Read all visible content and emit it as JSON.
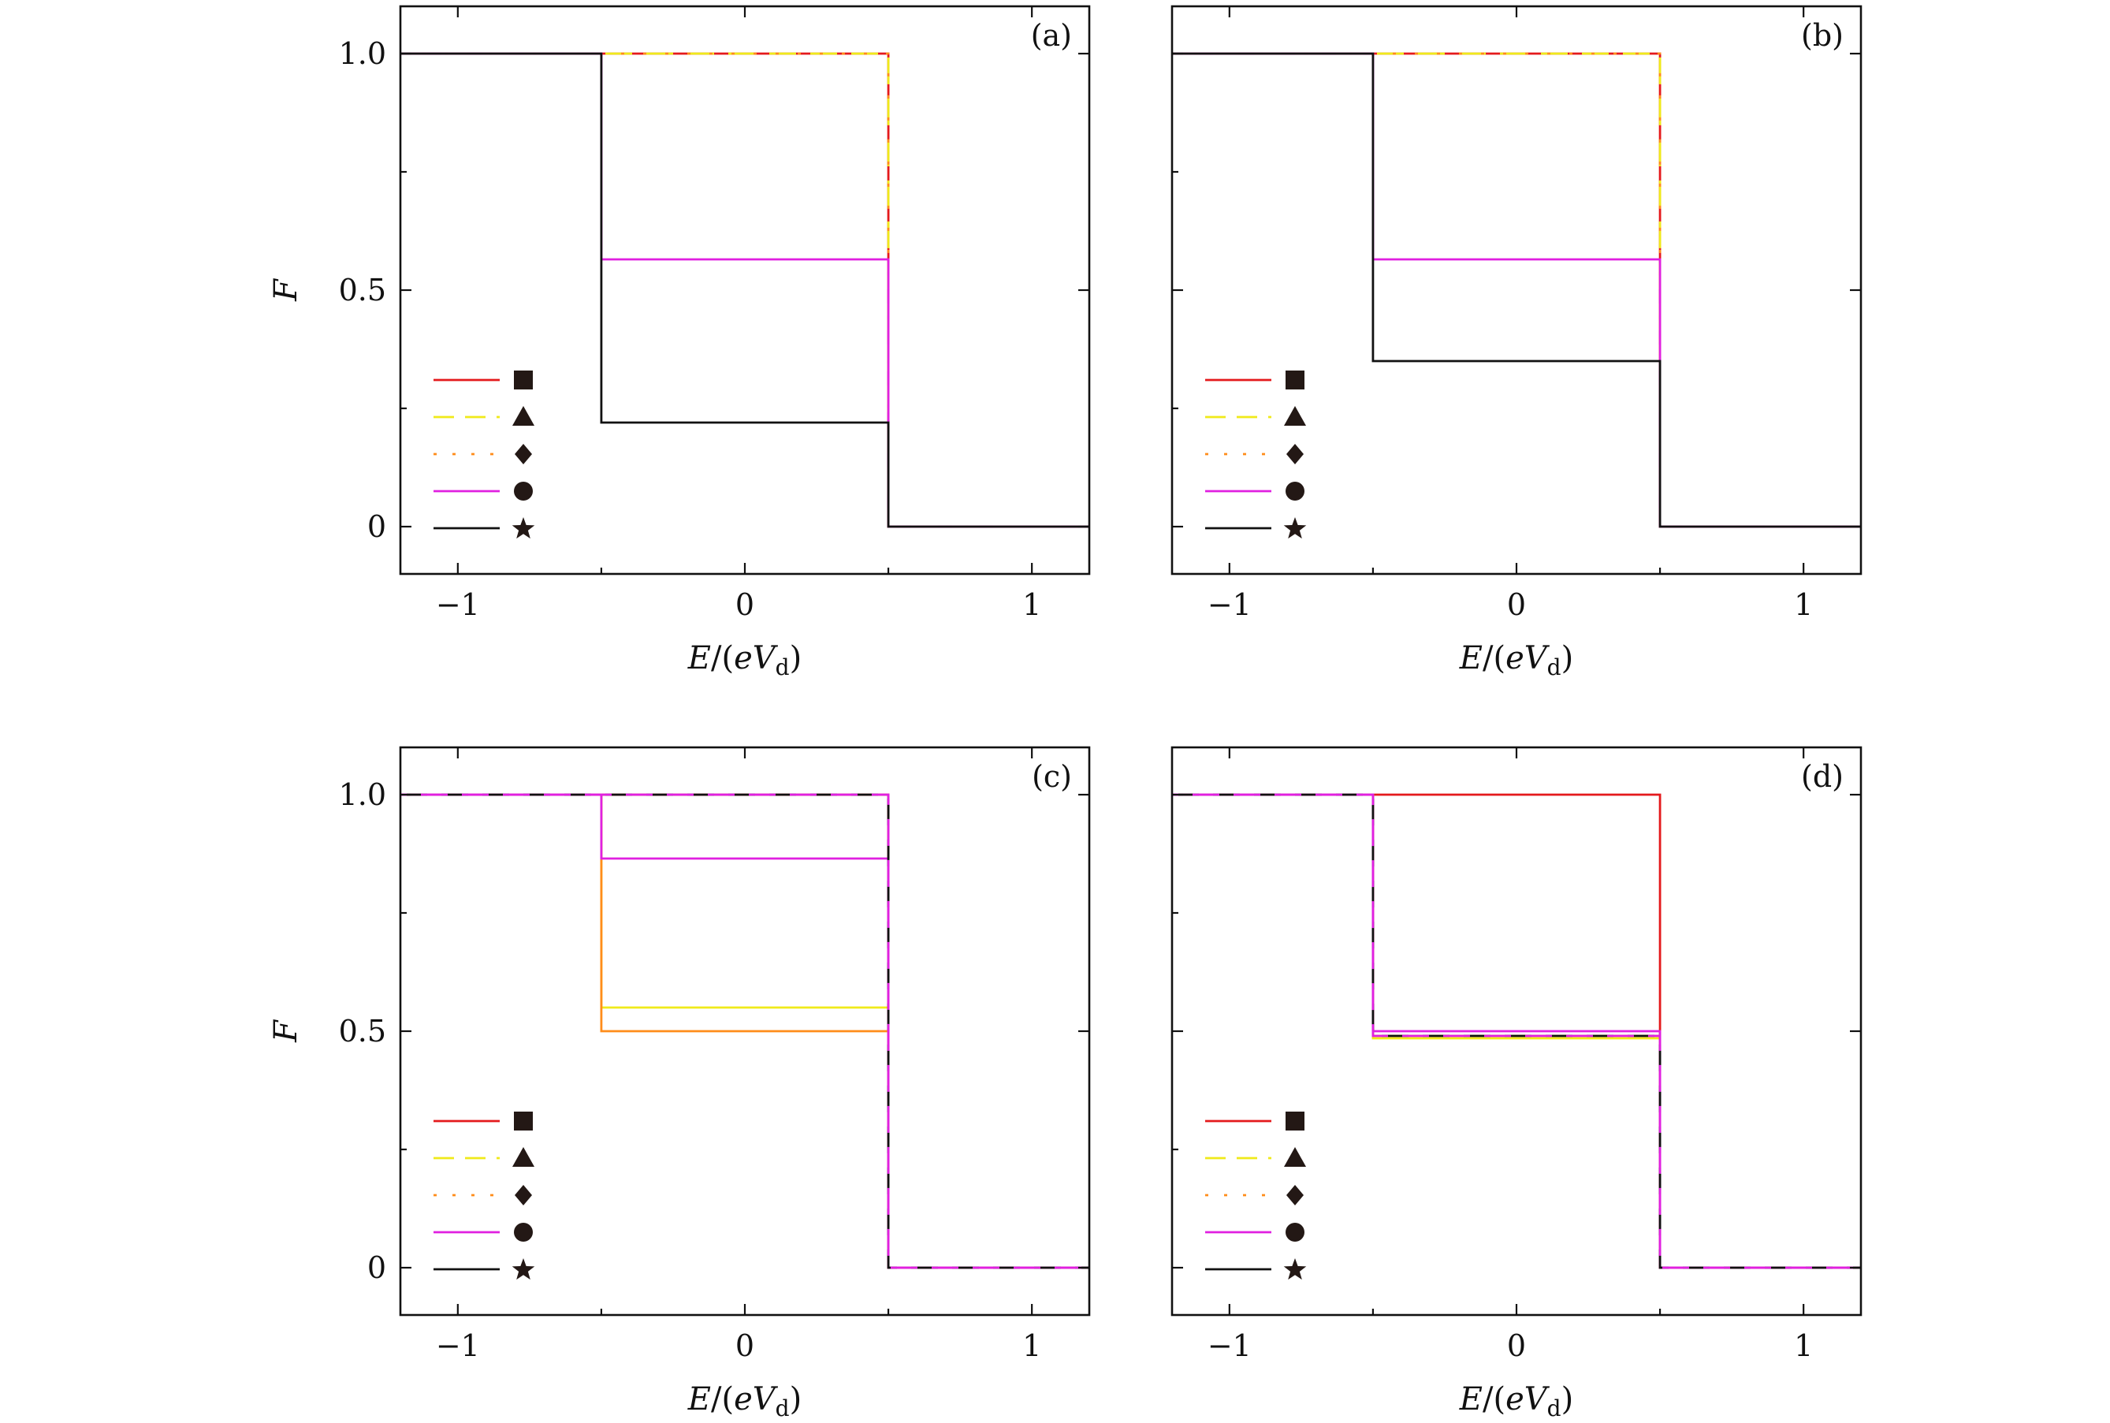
{
  "figure": {
    "panel_labels": [
      "(a)",
      "(b)",
      "(c)",
      "(d)"
    ]
  },
  "legend": {
    "entries": [
      {
        "marker": "square-icon",
        "color": "#e41a1c",
        "dash": "solid"
      },
      {
        "marker": "triangle-icon",
        "color": "#f0ea1a",
        "dash": "dashed"
      },
      {
        "marker": "diamond-icon",
        "color": "#ff8c1a",
        "dash": "dotted"
      },
      {
        "marker": "circle-icon",
        "color": "#e020e0",
        "dash": "solid"
      },
      {
        "marker": "star-icon",
        "color": "#111111",
        "dash": "solid"
      }
    ]
  },
  "chart_data": [
    {
      "type": "line",
      "panel": "(a)",
      "xlabel": "E/(eV_d)",
      "ylabel": "F",
      "xlim": [
        -1.2,
        1.2
      ],
      "ylim": [
        -0.1,
        1.1
      ],
      "xticks": [
        -1,
        0,
        1
      ],
      "xtick_labels": [
        "−1",
        "0",
        "1"
      ],
      "yticks": [
        0,
        0.5,
        1.0
      ],
      "ytick_labels": [
        "0",
        "0.5",
        "1.0"
      ],
      "legend_position": "bottom-left",
      "series": [
        {
          "color": "#e41a1c",
          "dash": "solid",
          "x": [
            -1.2,
            -0.5,
            -0.5,
            0.5,
            0.5,
            1.2
          ],
          "y": [
            1,
            1,
            1,
            1,
            0,
            0
          ]
        },
        {
          "color": "#f0ea1a",
          "dash": "dashed",
          "x": [
            -1.2,
            -0.5,
            -0.5,
            0.5,
            0.5,
            1.2
          ],
          "y": [
            1,
            1,
            1,
            1,
            0,
            0
          ]
        },
        {
          "color": "#ff8c1a",
          "dash": "dotted",
          "x": [
            -1.2,
            -0.5,
            -0.5,
            0.5,
            0.5,
            1.2
          ],
          "y": [
            1,
            1,
            1,
            1,
            0,
            0
          ]
        },
        {
          "color": "#e020e0",
          "dash": "solid",
          "x": [
            -1.2,
            -0.5,
            -0.5,
            0.5,
            0.5,
            1.2
          ],
          "y": [
            1,
            1,
            0.565,
            0.565,
            0,
            0
          ]
        },
        {
          "color": "#111111",
          "dash": "solid",
          "x": [
            -1.2,
            -0.5,
            -0.5,
            0.5,
            0.5,
            1.2
          ],
          "y": [
            1,
            1,
            0.22,
            0.22,
            0,
            0
          ]
        }
      ]
    },
    {
      "type": "line",
      "panel": "(b)",
      "xlabel": "E/(eV_d)",
      "ylabel": "",
      "xlim": [
        -1.2,
        1.2
      ],
      "ylim": [
        -0.1,
        1.1
      ],
      "xticks": [
        -1,
        0,
        1
      ],
      "xtick_labels": [
        "−1",
        "0",
        "1"
      ],
      "yticks": [
        0,
        0.5,
        1.0
      ],
      "ytick_labels": [],
      "legend_position": "bottom-left",
      "series": [
        {
          "color": "#e41a1c",
          "dash": "solid",
          "x": [
            -1.2,
            -0.5,
            -0.5,
            0.5,
            0.5,
            1.2
          ],
          "y": [
            1,
            1,
            1,
            1,
            0,
            0
          ]
        },
        {
          "color": "#f0ea1a",
          "dash": "dashed",
          "x": [
            -1.2,
            -0.5,
            -0.5,
            0.5,
            0.5,
            1.2
          ],
          "y": [
            1,
            1,
            1,
            1,
            0,
            0
          ]
        },
        {
          "color": "#ff8c1a",
          "dash": "dotted",
          "x": [
            -1.2,
            -0.5,
            -0.5,
            0.5,
            0.5,
            1.2
          ],
          "y": [
            1,
            1,
            1,
            1,
            0,
            0
          ]
        },
        {
          "color": "#e020e0",
          "dash": "solid",
          "x": [
            -1.2,
            -0.5,
            -0.5,
            0.5,
            0.5,
            1.2
          ],
          "y": [
            1,
            1,
            0.565,
            0.565,
            0,
            0
          ]
        },
        {
          "color": "#111111",
          "dash": "solid",
          "x": [
            -1.2,
            -0.5,
            -0.5,
            0.5,
            0.5,
            1.2
          ],
          "y": [
            1,
            1,
            0.35,
            0.35,
            0,
            0
          ]
        }
      ]
    },
    {
      "type": "line",
      "panel": "(c)",
      "xlabel": "E/(eV_d)",
      "ylabel": "F",
      "xlim": [
        -1.2,
        1.2
      ],
      "ylim": [
        -0.1,
        1.1
      ],
      "xticks": [
        -1,
        0,
        1
      ],
      "xtick_labels": [
        "−1",
        "0",
        "1"
      ],
      "yticks": [
        0,
        0.5,
        1.0
      ],
      "ytick_labels": [
        "0",
        "0.5",
        "1.0"
      ],
      "legend_position": "bottom-left",
      "series": [
        {
          "color": "#e41a1c",
          "dash": "solid",
          "x": [
            -1.2,
            -0.5,
            -0.5,
            0.5,
            0.5,
            1.2
          ],
          "y": [
            1,
            1,
            1,
            1,
            0,
            0
          ]
        },
        {
          "color": "#f0ea1a",
          "dash": "solid",
          "x": [
            -1.2,
            -0.5,
            -0.5,
            0.5,
            0.5,
            1.2
          ],
          "y": [
            1,
            1,
            0.55,
            0.55,
            0,
            0
          ]
        },
        {
          "color": "#ff8c1a",
          "dash": "solid",
          "x": [
            -1.2,
            -0.5,
            -0.5,
            0.5,
            0.5,
            1.2
          ],
          "y": [
            1,
            1,
            0.5,
            0.5,
            0,
            0
          ]
        },
        {
          "color": "#e020e0",
          "dash": "solid",
          "x": [
            -1.2,
            -0.5,
            -0.5,
            0.5,
            0.5,
            1.2
          ],
          "y": [
            1,
            1,
            0.865,
            0.865,
            0,
            0
          ]
        },
        {
          "color": "#111111",
          "dash": "dashed",
          "x": [
            -1.2,
            -0.5,
            -0.5,
            0.5,
            0.5,
            1.2
          ],
          "y": [
            1,
            1,
            1,
            1,
            0,
            0
          ]
        },
        {
          "color": "#e020e0",
          "dash": "dashed-offset",
          "x": [
            -1.2,
            -0.5,
            -0.5,
            0.5,
            0.5,
            1.2
          ],
          "y": [
            1,
            1,
            1,
            1,
            0,
            0
          ]
        }
      ]
    },
    {
      "type": "line",
      "panel": "(d)",
      "xlabel": "E/(eV_d)",
      "ylabel": "",
      "xlim": [
        -1.2,
        1.2
      ],
      "ylim": [
        -0.1,
        1.1
      ],
      "xticks": [
        -1,
        0,
        1
      ],
      "xtick_labels": [
        "−1",
        "0",
        "1"
      ],
      "yticks": [
        0,
        0.5,
        1.0
      ],
      "ytick_labels": [],
      "legend_position": "bottom-left",
      "series": [
        {
          "color": "#e41a1c",
          "dash": "solid",
          "x": [
            -1.2,
            -0.5,
            -0.5,
            0.5,
            0.5,
            1.2
          ],
          "y": [
            1,
            1,
            1,
            1,
            0,
            0
          ]
        },
        {
          "color": "#f0ea1a",
          "dash": "solid",
          "x": [
            -1.2,
            -0.5,
            -0.5,
            0.5,
            0.5,
            1.2
          ],
          "y": [
            1,
            1,
            0.485,
            0.485,
            0,
            0
          ]
        },
        {
          "color": "#ff8c1a",
          "dash": "solid",
          "x": [
            -1.2,
            -0.5,
            -0.5,
            0.5,
            0.5,
            1.2
          ],
          "y": [
            1,
            1,
            0.49,
            0.49,
            0,
            0
          ]
        },
        {
          "color": "#e020e0",
          "dash": "solid",
          "x": [
            -1.2,
            -0.5,
            -0.5,
            0.5,
            0.5,
            1.2
          ],
          "y": [
            1,
            1,
            0.5,
            0.5,
            0,
            0
          ]
        },
        {
          "color": "#111111",
          "dash": "dashed",
          "x": [
            -1.2,
            -0.5,
            -0.5,
            0.5,
            0.5,
            1.2
          ],
          "y": [
            1,
            1,
            0.49,
            0.49,
            0,
            0
          ]
        },
        {
          "color": "#e020e0",
          "dash": "dashed-offset",
          "x": [
            -1.2,
            -0.5,
            -0.5,
            0.5,
            0.5,
            1.2
          ],
          "y": [
            1,
            1,
            0.49,
            0.49,
            0,
            0
          ]
        }
      ]
    }
  ]
}
